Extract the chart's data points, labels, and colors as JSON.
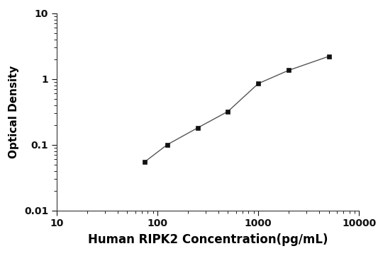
{
  "x": [
    75,
    125,
    250,
    500,
    1000,
    2000,
    5000
  ],
  "y": [
    0.055,
    0.1,
    0.18,
    0.32,
    0.85,
    1.35,
    2.2
  ],
  "xlabel": "Human RIPK2 Concentration(pg/mL)",
  "ylabel": "Optical Density",
  "xlim": [
    10,
    10000
  ],
  "ylim": [
    0.01,
    10
  ],
  "xticks": [
    10,
    100,
    1000,
    10000
  ],
  "yticks": [
    0.01,
    0.1,
    1,
    10
  ],
  "xtick_labels": [
    "10",
    "100",
    "1000",
    "10000"
  ],
  "ytick_labels": [
    "0.01",
    "0.1",
    "1",
    "10"
  ],
  "line_color": "#555555",
  "marker": "s",
  "marker_color": "#111111",
  "marker_size": 5,
  "line_width": 1.0,
  "background_color": "#ffffff",
  "xlabel_fontsize": 12,
  "ylabel_fontsize": 11,
  "tick_fontsize": 10
}
